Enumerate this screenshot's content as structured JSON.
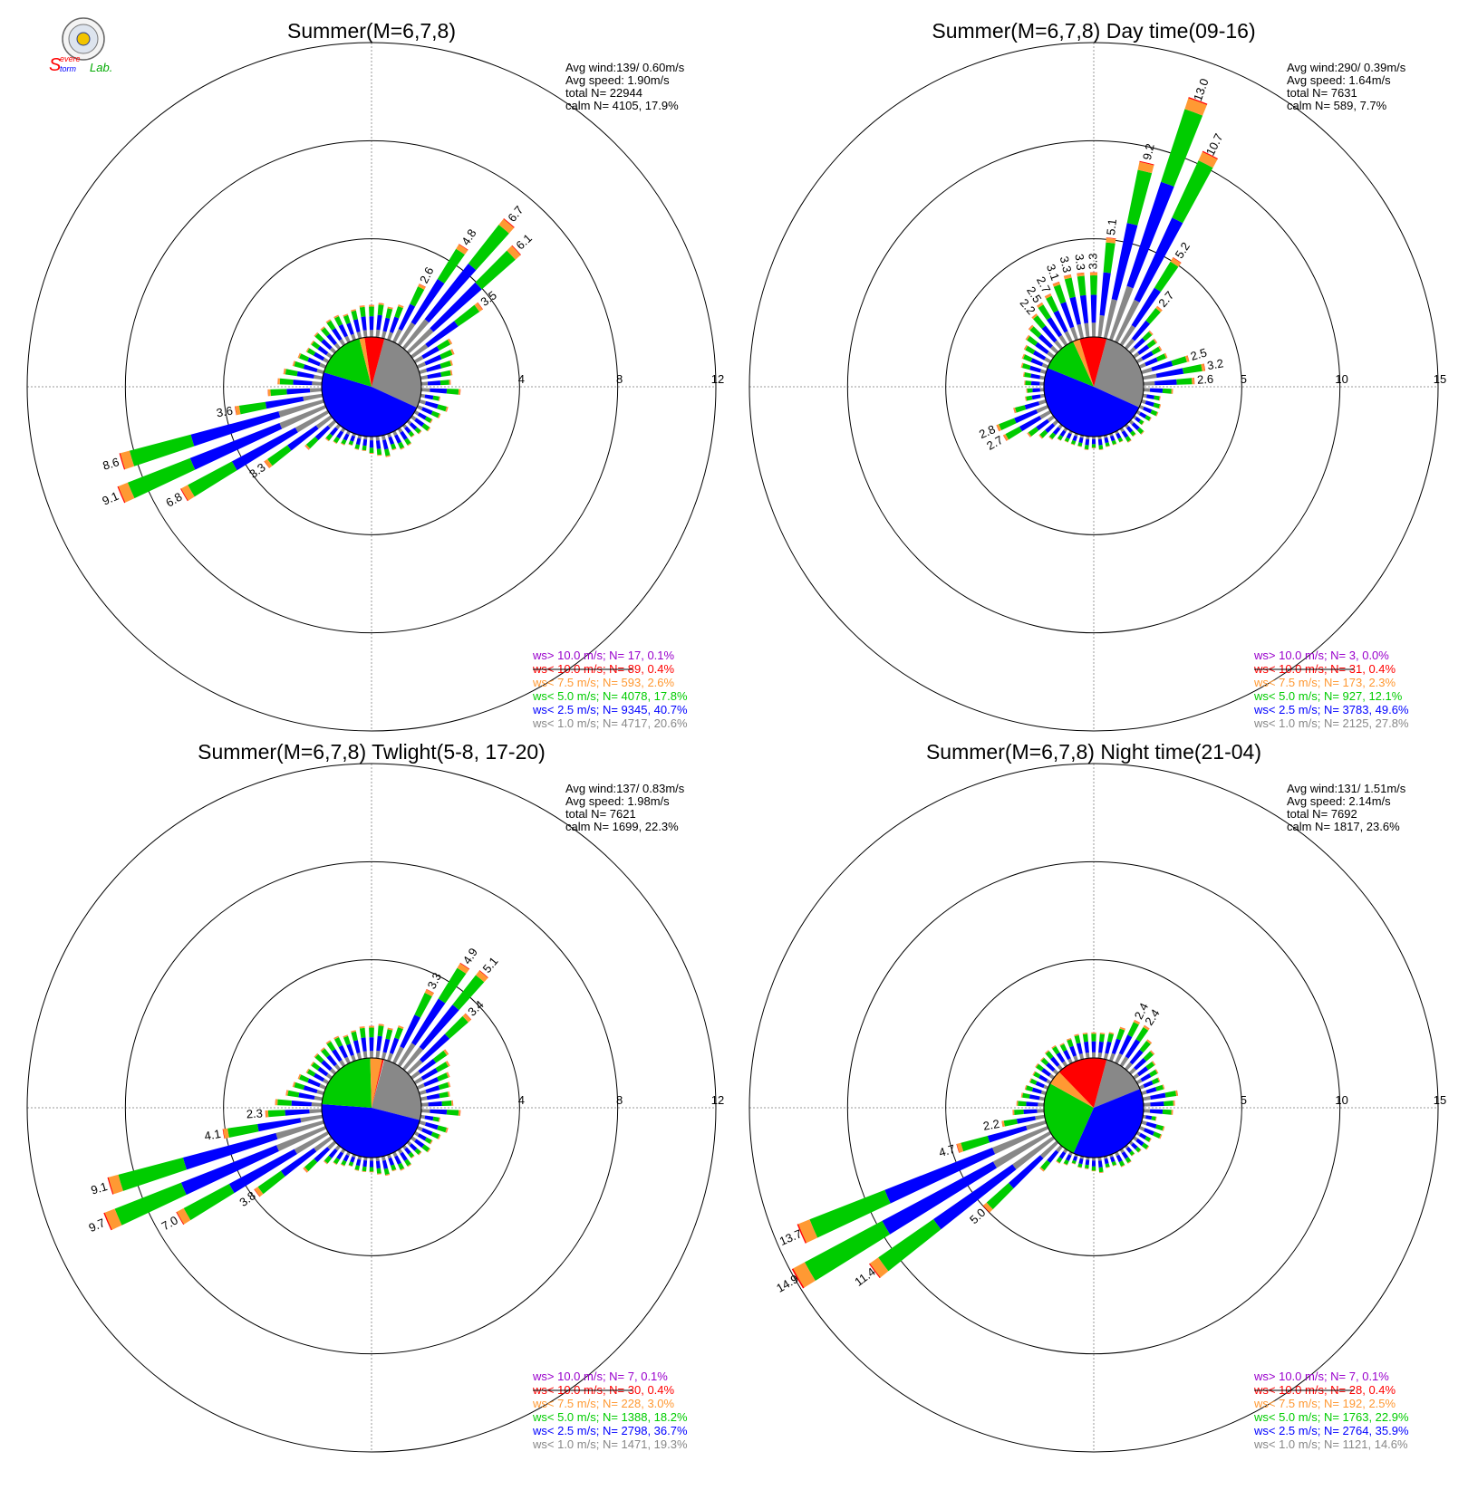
{
  "logo": {
    "text_s": "S",
    "text_evere": "evere",
    "text_torm": "torm",
    "text_lab": "Lab."
  },
  "colors": {
    "purple": "#9900cc",
    "red": "#ff0000",
    "orange": "#ff9933",
    "green": "#00cc00",
    "blue": "#0000ff",
    "gray": "#888888",
    "calm_gray": "#888888",
    "calm_blue": "#0000ff",
    "calm_green": "#00cc00",
    "calm_orange": "#ff9933",
    "calm_red": "#ff0000"
  },
  "chart_data": [
    {
      "type": "windrose",
      "title": "Summer(M=6,7,8)",
      "rmax": 12,
      "rings": [
        4,
        8,
        12
      ],
      "ring_labels": [
        "4",
        "8",
        "12"
      ],
      "stats": {
        "avg_wind": "Avg wind:139/ 0.60m/s",
        "avg_speed": "Avg speed: 1.90m/s",
        "total": "total N=      22944",
        "calm": "calm N=  4105,  17.9%"
      },
      "calm_pct": 17.9,
      "calm_shares": [
        27.7,
        47.8,
        16.4,
        1.7,
        6.4
      ],
      "bar_values": [
        1.6,
        0.8,
        1.2,
        1.0,
        0.8,
        0.9,
        0.7,
        0.6,
        0.8,
        0.8,
        0.7,
        0.9,
        0.8,
        0.7,
        0.6,
        0.6,
        0.5,
        0.6,
        0.7,
        0.8,
        1.6,
        3.3,
        6.8,
        9.1,
        8.6,
        3.6,
        2.2,
        1.8,
        1.6,
        1.3,
        1.2,
        1.0,
        1.0,
        1.1,
        1.1,
        1.2,
        1.2,
        1.1,
        1.2,
        1.3,
        1.3,
        1.4,
        1.3,
        1.5,
        2.6,
        4.8,
        6.7,
        6.1,
        3.5,
        1.7,
        1.6,
        1.4,
        1.3,
        1.2
      ],
      "bar_labels": {
        "21": "3.3",
        "22": "6.8",
        "23": "9.1",
        "24": "8.6",
        "25": "3.6",
        "44": "2.6",
        "45": "4.8",
        "46": "6.7",
        "47": "6.1",
        "48": "3.5"
      },
      "legend": [
        {
          "text": "ws> 10.0 m/s; N=     17,   0.1%",
          "color": "purple"
        },
        {
          "text": "ws< 10.0 m/s; N=     89,   0.4%",
          "color": "red"
        },
        {
          "text": "ws<  7.5 m/s; N=    593,   2.6%",
          "color": "orange"
        },
        {
          "text": "ws<  5.0 m/s; N=  4078, 17.8%",
          "color": "green"
        },
        {
          "text": "ws<  2.5 m/s; N=  9345, 40.7%",
          "color": "blue"
        },
        {
          "text": "ws<  1.0 m/s; N=  4717, 20.6%",
          "color": "gray"
        }
      ]
    },
    {
      "type": "windrose",
      "title": "Summer(M=6,7,8) Day time(09-16)",
      "rmax": 15,
      "rings": [
        5,
        10,
        15
      ],
      "ring_labels": [
        "5",
        "10",
        "15"
      ],
      "stats": {
        "avg_wind": "Avg wind:290/ 0.39m/s",
        "avg_speed": "Avg speed: 1.64m/s",
        "total": "total N=        7631",
        "calm": "calm N=    589,    7.7%"
      },
      "calm_pct": 7.7,
      "calm_shares": [
        27.6,
        49.4,
        12.0,
        2.2,
        8.8
      ],
      "bar_values": [
        1.5,
        0.9,
        1.0,
        1.0,
        0.8,
        0.6,
        0.9,
        0.7,
        0.8,
        0.6,
        0.6,
        0.6,
        0.7,
        0.6,
        0.7,
        0.6,
        0.6,
        0.6,
        0.7,
        0.9,
        1.2,
        1.6,
        2.7,
        2.8,
        1.7,
        1.0,
        0.9,
        1.0,
        1.1,
        1.3,
        1.4,
        1.5,
        1.7,
        1.9,
        2.2,
        2.5,
        2.7,
        3.1,
        3.3,
        3.3,
        3.3,
        5.1,
        9.2,
        13.0,
        10.7,
        5.2,
        2.7,
        1.5,
        1.4,
        1.4,
        1.5,
        2.5,
        3.2,
        2.6
      ],
      "bar_labels": {
        "22": "2.7",
        "23": "2.8",
        "34": "2.2",
        "35": "2.5",
        "36": "2.7",
        "37": "3.1",
        "38": "3.3",
        "39": "3.3",
        "40": "3.3",
        "41": "5.1",
        "42": "9.2",
        "43": "13.0",
        "44": "10.7",
        "45": "5.2",
        "46": "2.7",
        "51": "2.5",
        "52": "3.2",
        "53": "2.6"
      },
      "legend": [
        {
          "text": "ws> 10.0 m/s; N=       3,   0.0%",
          "color": "purple"
        },
        {
          "text": "ws< 10.0 m/s; N=     31,   0.4%",
          "color": "red"
        },
        {
          "text": "ws<  7.5 m/s; N=    173,   2.3%",
          "color": "orange"
        },
        {
          "text": "ws<  5.0 m/s; N=    927, 12.1%",
          "color": "green"
        },
        {
          "text": "ws<  2.5 m/s; N=  3783, 49.6%",
          "color": "blue"
        },
        {
          "text": "ws<  1.0 m/s; N=  2125, 27.8%",
          "color": "gray"
        }
      ]
    },
    {
      "type": "windrose",
      "title": "Summer(M=6,7,8) Twlight(5-8, 17-20)",
      "rmax": 12,
      "rings": [
        4,
        8,
        12
      ],
      "ring_labels": [
        "4",
        "8",
        "12"
      ],
      "stats": {
        "avg_wind": "Avg wind:137/ 0.83m/s",
        "avg_speed": "Avg speed: 1.98m/s",
        "total": "total N=        7621",
        "calm": "calm N=  1699,  22.3%"
      },
      "calm_pct": 22.3,
      "calm_shares": [
        24.8,
        47.2,
        23.4,
        3.9,
        0.5
      ],
      "bar_values": [
        1.6,
        0.8,
        1.2,
        1.0,
        0.8,
        0.9,
        0.7,
        0.6,
        0.8,
        0.8,
        0.7,
        0.8,
        0.7,
        0.6,
        0.6,
        0.6,
        0.5,
        0.6,
        0.7,
        0.9,
        1.7,
        3.8,
        7.0,
        9.7,
        9.1,
        4.1,
        2.3,
        1.9,
        1.5,
        1.3,
        1.2,
        1.0,
        1.0,
        1.1,
        1.1,
        1.2,
        1.2,
        1.1,
        1.2,
        1.3,
        1.3,
        1.4,
        1.3,
        1.5,
        3.3,
        4.9,
        5.1,
        3.4,
        1.8,
        1.6,
        1.4,
        1.3,
        1.2,
        1.3
      ],
      "bar_labels": {
        "21": "3.8",
        "22": "7.0",
        "23": "9.7",
        "24": "9.1",
        "25": "4.1",
        "26": "2.3",
        "44": "3.3",
        "45": "4.9",
        "46": "5.1",
        "47": "3.4"
      },
      "legend": [
        {
          "text": "ws> 10.0 m/s; N=       7,   0.1%",
          "color": "purple"
        },
        {
          "text": "ws< 10.0 m/s; N=     30,   0.4%",
          "color": "red"
        },
        {
          "text": "ws<  7.5 m/s; N=    228,   3.0%",
          "color": "orange"
        },
        {
          "text": "ws<  5.0 m/s; N=  1388, 18.2%",
          "color": "green"
        },
        {
          "text": "ws<  2.5 m/s; N=  2798, 36.7%",
          "color": "blue"
        },
        {
          "text": "ws<  1.0 m/s; N=  1471, 19.3%",
          "color": "gray"
        }
      ]
    },
    {
      "type": "windrose",
      "title": "Summer(M=6,7,8) Night time(21-04)",
      "rmax": 15,
      "rings": [
        5,
        10,
        15
      ],
      "ring_labels": [
        "5",
        "10",
        "15"
      ],
      "stats": {
        "avg_wind": "Avg wind:131/ 1.51m/s",
        "avg_speed": "Avg speed: 2.14m/s",
        "total": "total N=        7692",
        "calm": "calm N=  1817,  23.6%"
      },
      "calm_pct": 23.6,
      "calm_shares": [
        14.7,
        37.8,
        26.4,
        4.7,
        16.4
      ],
      "bar_values": [
        1.5,
        0.7,
        1.2,
        1.2,
        0.8,
        0.9,
        0.7,
        0.6,
        0.8,
        0.8,
        0.6,
        0.6,
        0.8,
        0.7,
        0.6,
        0.6,
        0.5,
        0.7,
        0.8,
        1.6,
        5.0,
        11.4,
        14.9,
        13.7,
        4.7,
        2.2,
        1.6,
        1.4,
        1.2,
        1.1,
        1.0,
        1.0,
        1.1,
        1.1,
        1.2,
        1.2,
        1.1,
        1.2,
        1.3,
        1.3,
        1.3,
        1.3,
        1.4,
        1.8,
        2.4,
        2.4,
        1.9,
        1.6,
        1.3,
        1.2,
        1.1,
        1.2,
        1.8,
        1.6
      ],
      "bar_labels": {
        "20": "5.0",
        "21": "11.4",
        "22": "14.9",
        "23": "13.7",
        "24": "4.7",
        "25": "2.2",
        "44": "2.4",
        "45": "2.4"
      },
      "legend": [
        {
          "text": "ws> 10.0 m/s; N=       7,   0.1%",
          "color": "purple"
        },
        {
          "text": "ws< 10.0 m/s; N=     28,   0.4%",
          "color": "red"
        },
        {
          "text": "ws<  7.5 m/s; N=    192,   2.5%",
          "color": "orange"
        },
        {
          "text": "ws<  5.0 m/s; N=  1763, 22.9%",
          "color": "green"
        },
        {
          "text": "ws<  2.5 m/s; N=  2764, 35.9%",
          "color": "blue"
        },
        {
          "text": "ws<  1.0 m/s; N=  1121, 14.6%",
          "color": "gray"
        }
      ]
    }
  ]
}
